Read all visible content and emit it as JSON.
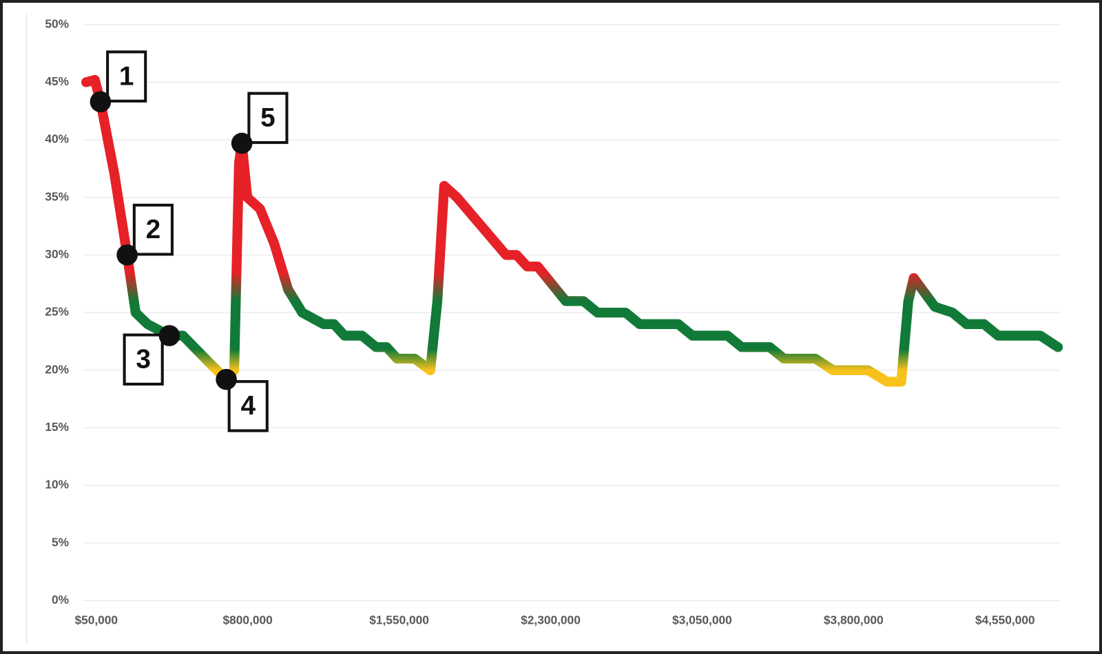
{
  "chart_data": {
    "type": "line",
    "x": [
      0,
      43000,
      71000,
      140000,
      203000,
      245000,
      304000,
      412000,
      479000,
      618000,
      694000,
      733000,
      757000,
      771000,
      798000,
      861000,
      931000,
      1000000,
      1070000,
      1175000,
      1227000,
      1279000,
      1366000,
      1436000,
      1488000,
      1540000,
      1627000,
      1704000,
      1739000,
      1773000,
      1836000,
      2079000,
      2131000,
      2184000,
      2236000,
      2375000,
      2462000,
      2532000,
      2671000,
      2741000,
      2932000,
      3002000,
      3176000,
      3246000,
      3385000,
      3455000,
      3611000,
      3698000,
      3872000,
      3966000,
      4036000,
      4071000,
      4098000,
      4203000,
      4290000,
      4359000,
      4446000,
      4516000,
      4725000,
      4812000
    ],
    "values": [
      45,
      45.2,
      43.3,
      37,
      30,
      25,
      24,
      23,
      23,
      20.5,
      19.2,
      20,
      38,
      39.7,
      35,
      34,
      31,
      27,
      25,
      24,
      24,
      23,
      23,
      22,
      22,
      21,
      21,
      20,
      26,
      36,
      35,
      30,
      30,
      29,
      29,
      26,
      26,
      25,
      25,
      24,
      24,
      23,
      23,
      22,
      22,
      21,
      21,
      20,
      20,
      19,
      19,
      26,
      28,
      25.5,
      25,
      24,
      24,
      23,
      23,
      22
    ],
    "color_stops": [
      {
        "value": 20,
        "color": "#f7c21b"
      },
      {
        "value": 21.8,
        "color": "#127a38"
      },
      {
        "value": 26,
        "color": "#127a38"
      },
      {
        "value": 28.5,
        "color": "#e62127"
      }
    ],
    "xlim": [
      0,
      4820000
    ],
    "ylim": [
      0,
      50
    ],
    "xticks": [
      {
        "value": 50000,
        "label": "$50,000"
      },
      {
        "value": 800000,
        "label": "$800,000"
      },
      {
        "value": 1550000,
        "label": "$1,550,000"
      },
      {
        "value": 2300000,
        "label": "$2,300,000"
      },
      {
        "value": 3050000,
        "label": "$3,050,000"
      },
      {
        "value": 3800000,
        "label": "$3,800,000"
      },
      {
        "value": 4550000,
        "label": "$4,550,000"
      }
    ],
    "yticks": [
      {
        "value": 0,
        "label": "0%"
      },
      {
        "value": 5,
        "label": "5%"
      },
      {
        "value": 10,
        "label": "10%"
      },
      {
        "value": 15,
        "label": "15%"
      },
      {
        "value": 20,
        "label": "20%"
      },
      {
        "value": 25,
        "label": "25%"
      },
      {
        "value": 30,
        "label": "30%"
      },
      {
        "value": 35,
        "label": "35%"
      },
      {
        "value": 40,
        "label": "40%"
      },
      {
        "value": 45,
        "label": "45%"
      },
      {
        "value": 50,
        "label": "50%"
      }
    ],
    "grid": true,
    "annotations": [
      {
        "label": "1",
        "x": 71000,
        "y": 43.3,
        "placement": "upper-right"
      },
      {
        "label": "2",
        "x": 203000,
        "y": 30,
        "placement": "upper-right"
      },
      {
        "label": "3",
        "x": 412000,
        "y": 23,
        "placement": "lower-left"
      },
      {
        "label": "4",
        "x": 694000,
        "y": 19.2,
        "placement": "lower-right"
      },
      {
        "label": "5",
        "x": 771000,
        "y": 39.7,
        "placement": "upper-right"
      }
    ]
  }
}
